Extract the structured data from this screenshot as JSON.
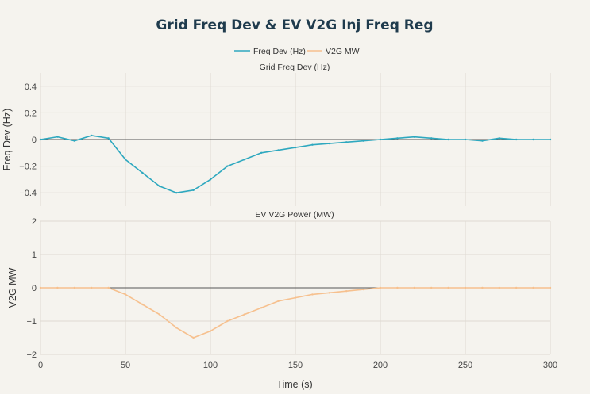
{
  "chart_data": {
    "type": "line",
    "title": "Grid Freq Dev & EV V2G Inj Freq Reg",
    "xlabel": "Time (s)",
    "x_ticks": [
      0,
      50,
      100,
      150,
      200,
      250,
      300
    ],
    "xlim": [
      0,
      300
    ],
    "legend": {
      "placement": "top-center",
      "entries": [
        {
          "name": "Freq Dev (Hz)",
          "color": "#2ea8bf"
        },
        {
          "name": "V2G MW",
          "color": "#f6c08e"
        }
      ]
    },
    "subplots": [
      {
        "title": "Grid Freq Dev (Hz)",
        "ylabel": "Freq Dev (Hz)",
        "ylim": [
          -0.5,
          0.5
        ],
        "y_ticks": [
          0.4,
          0.2,
          0,
          -0.2,
          -0.4
        ],
        "y_tick_labels": [
          "0.4",
          "0.2",
          "0",
          "−0.2",
          "−0.4"
        ],
        "series": [
          {
            "name": "Freq Dev (Hz)",
            "color": "#2ea8bf",
            "x": [
              0,
              10,
              20,
              30,
              40,
              50,
              60,
              70,
              80,
              90,
              100,
              110,
              120,
              130,
              140,
              150,
              160,
              170,
              180,
              190,
              200,
              210,
              220,
              230,
              240,
              250,
              260,
              270,
              280,
              290,
              300
            ],
            "y": [
              0,
              0.02,
              -0.01,
              0.03,
              0.01,
              -0.15,
              -0.25,
              -0.35,
              -0.4,
              -0.38,
              -0.3,
              -0.2,
              -0.15,
              -0.1,
              -0.08,
              -0.06,
              -0.04,
              -0.03,
              -0.02,
              -0.01,
              0,
              0.01,
              0.02,
              0.01,
              0,
              0,
              -0.01,
              0.01,
              0,
              0,
              0
            ]
          }
        ]
      },
      {
        "title": "EV V2G Power (MW)",
        "ylabel": "V2G MW",
        "ylim": [
          -2,
          2
        ],
        "y_ticks": [
          2,
          1,
          0,
          -1,
          -2
        ],
        "y_tick_labels": [
          "2",
          "1",
          "0",
          "−1",
          "−2"
        ],
        "series": [
          {
            "name": "V2G MW",
            "color": "#f6c08e",
            "x": [
              0,
              10,
              20,
              30,
              40,
              50,
              60,
              70,
              80,
              90,
              100,
              110,
              120,
              130,
              140,
              150,
              160,
              170,
              180,
              190,
              200,
              210,
              220,
              230,
              240,
              250,
              260,
              270,
              280,
              290,
              300
            ],
            "y": [
              0,
              0,
              0,
              0,
              0,
              -0.2,
              -0.5,
              -0.8,
              -1.2,
              -1.5,
              -1.3,
              -1.0,
              -0.8,
              -0.6,
              -0.4,
              -0.3,
              -0.2,
              -0.15,
              -0.1,
              -0.05,
              0,
              0,
              0,
              0,
              0,
              0,
              0,
              0,
              0,
              0,
              0
            ]
          }
        ]
      }
    ]
  }
}
